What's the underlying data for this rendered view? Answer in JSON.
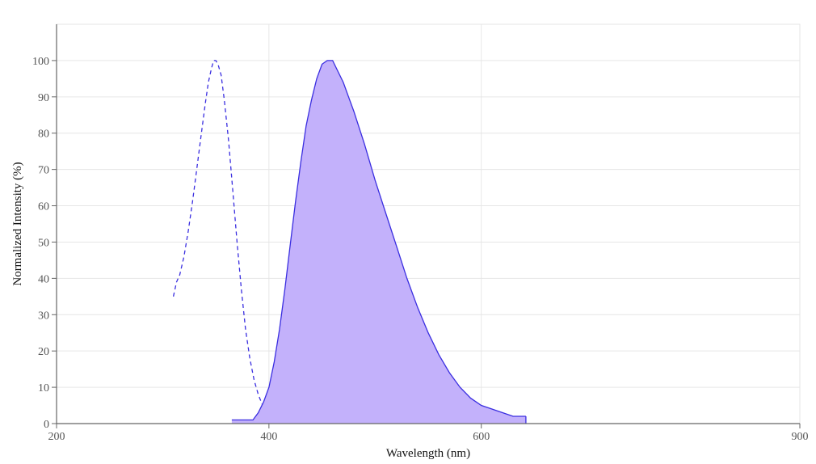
{
  "chart_data": {
    "type": "area",
    "title": "",
    "xlabel": "Wavelength (nm)",
    "ylabel": "Normalized Intensity (%)",
    "xlim": [
      200,
      900
    ],
    "ylim": [
      0,
      110
    ],
    "x_ticks": [
      200,
      400,
      600,
      900
    ],
    "y_ticks": [
      0,
      10,
      20,
      30,
      40,
      50,
      60,
      70,
      80,
      90,
      100
    ],
    "grid": true,
    "legend": "none",
    "series": [
      {
        "style": "dashed-line",
        "color": "#3a2ee0",
        "x": [
          310,
          313,
          316,
          320,
          324,
          328,
          332,
          336,
          340,
          343,
          346,
          348,
          350,
          352,
          355,
          358,
          362,
          366,
          370,
          374,
          378,
          382,
          386,
          390,
          394,
          398,
          402,
          406,
          410,
          415,
          420,
          425,
          430,
          433
        ],
        "y": [
          35,
          39,
          41,
          46,
          53,
          61,
          70,
          79,
          88,
          94,
          98,
          100,
          100,
          99,
          96,
          89,
          78,
          64,
          50,
          37,
          26,
          18,
          12,
          8,
          5,
          3,
          2,
          2,
          1,
          1,
          1,
          1,
          1,
          0
        ]
      },
      {
        "style": "filled-area",
        "color": "#3a2ee0",
        "fill": "#c3b1fb",
        "x": [
          365,
          370,
          375,
          380,
          385,
          390,
          395,
          400,
          405,
          410,
          415,
          420,
          425,
          430,
          435,
          440,
          445,
          450,
          455,
          460,
          465,
          470,
          475,
          480,
          490,
          500,
          510,
          520,
          530,
          540,
          550,
          560,
          570,
          580,
          590,
          600,
          610,
          620,
          630,
          642
        ],
        "y": [
          1,
          1,
          1,
          1,
          1,
          3,
          6,
          10,
          17,
          26,
          37,
          49,
          61,
          72,
          82,
          89,
          95,
          99,
          100,
          100,
          97,
          94,
          90,
          86,
          77,
          67,
          58,
          49,
          40,
          32,
          25,
          19,
          14,
          10,
          7,
          5,
          4,
          3,
          2,
          2
        ]
      }
    ]
  }
}
